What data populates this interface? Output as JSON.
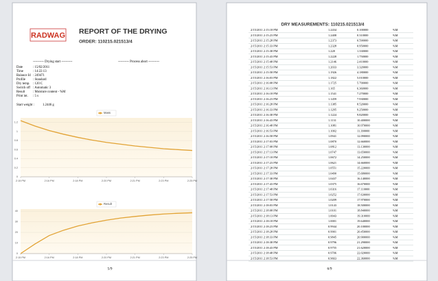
{
  "header": {
    "logo": "RADWAG",
    "title": "REPORT OF THE DRYING",
    "order": "ORDER: 110215.021513/4"
  },
  "info": {
    "start_label": "---------- Drying start ----------",
    "abort_label": "---------- Process abort ----------",
    "rows": [
      {
        "label": "Date",
        "value": ": 15/02/2011"
      },
      {
        "label": "Time",
        "value": ": 14:22:13"
      },
      {
        "label": "Balance Id",
        "value": ": 249471"
      },
      {
        "label": "Profile",
        "value": ": Standard"
      },
      {
        "label": "Dry temp.",
        "value": ": 120 C"
      },
      {
        "label": "Switch off",
        "value": ": Automatic 3"
      },
      {
        "label": "Result",
        "value": ": Moisture content - %M"
      },
      {
        "label": "Print int.",
        "value": ": 5 s"
      }
    ]
  },
  "start_weight": {
    "label": "Start weight :",
    "value": "1.2446 g"
  },
  "charts": [
    {
      "type": "line",
      "legend": "Mass",
      "color": "#e2a233",
      "x": [
        0,
        1,
        2,
        3,
        4,
        5,
        6,
        7,
        8,
        9,
        10,
        11,
        12
      ],
      "values": [
        1.24,
        1.12,
        1.02,
        0.94,
        0.87,
        0.81,
        0.76,
        0.72,
        0.68,
        0.65,
        0.62,
        0.6,
        0.58
      ],
      "xlim": [
        0,
        12
      ],
      "ylim": [
        0,
        1.3
      ],
      "yticks": [
        0,
        0.2,
        0.4,
        0.6,
        0.8,
        1,
        1.2
      ],
      "xticks": [
        {
          "value": 0,
          "label": "2:15 PM"
        },
        {
          "value": 2,
          "label": "2:16 PM"
        },
        {
          "value": 4,
          "label": "2:18 PM"
        },
        {
          "value": 6,
          "label": "2:20 PM"
        },
        {
          "value": 8,
          "label": "2:21 PM"
        },
        {
          "value": 10,
          "label": "2:23 PM"
        },
        {
          "value": 12,
          "label": "2:25 PM"
        }
      ],
      "grid": true
    },
    {
      "type": "line",
      "legend": "Result",
      "color": "#e2a233",
      "x": [
        0,
        1,
        2,
        3,
        4,
        5,
        6,
        7,
        8,
        9,
        10,
        11,
        12
      ],
      "values": [
        0,
        9,
        17,
        22,
        26,
        29,
        31.5,
        33.5,
        35,
        36.3,
        37.3,
        38,
        38.5
      ],
      "xlim": [
        0,
        12
      ],
      "ylim": [
        0,
        42
      ],
      "yticks": [
        0,
        10,
        20,
        30,
        40
      ],
      "xticks": [
        {
          "value": 0,
          "label": "2:15 PM"
        },
        {
          "value": 2,
          "label": "2:16 PM"
        },
        {
          "value": 4,
          "label": "2:18 PM"
        },
        {
          "value": 6,
          "label": "2:20 PM"
        },
        {
          "value": 8,
          "label": "2:21 PM"
        },
        {
          "value": 10,
          "label": "2:23 PM"
        },
        {
          "value": 12,
          "label": "2:25 PM"
        }
      ],
      "grid": true
    }
  ],
  "table": {
    "title": "DRY MEASUREMENTS: 110215.021513/4",
    "rows": [
      [
        "2/15/2011 2:15:18 PM",
        "1.2434",
        "0.100000",
        "%M"
      ],
      [
        "2/15/2011 2:15:23 PM",
        "1.2408",
        "0.310000",
        "%M"
      ],
      [
        "2/15/2011 2:15:28 PM",
        "1.2373",
        "0.590000",
        "%M"
      ],
      [
        "2/15/2011 2:15:33 PM",
        "1.2328",
        "0.950000",
        "%M"
      ],
      [
        "2/15/2011 2:15:38 PM",
        "1.228",
        "1.330000",
        "%M"
      ],
      [
        "2/15/2011 2:15:43 PM",
        "1.2228",
        "1.750000",
        "%M"
      ],
      [
        "2/15/2011 2:15:48 PM",
        "1.2146",
        "2.410000",
        "%M"
      ],
      [
        "2/15/2011 2:15:53 PM",
        "1.2033",
        "3.320000",
        "%M"
      ],
      [
        "2/15/2011 2:15:58 PM",
        "1.1926",
        "4.180000",
        "%M"
      ],
      [
        "2/15/2011 2:16:03 PM",
        "1.1822",
        "5.010000",
        "%M"
      ],
      [
        "2/15/2011 2:16:08 PM",
        "1.1725",
        "5.790000",
        "%M"
      ],
      [
        "2/15/2011 2:16:13 PM",
        "1.165",
        "6.360000",
        "%M"
      ],
      [
        "2/15/2011 2:16:18 PM",
        "1.1541",
        "7.270000",
        "%M"
      ],
      [
        "2/15/2011 2:16:23 PM",
        "1.1459",
        "7.930000",
        "%M"
      ],
      [
        "2/15/2011 2:16:28 PM",
        "1.1385",
        "8.520000",
        "%M"
      ],
      [
        "2/15/2011 2:16:33 PM",
        "1.1295",
        "9.250000",
        "%M"
      ],
      [
        "2/15/2011 2:16:38 PM",
        "1.1224",
        "9.820000",
        "%M"
      ],
      [
        "2/15/2011 2:16:43 PM",
        "1.1131",
        "10.400000",
        "%M"
      ],
      [
        "2/15/2011 2:16:48 PM",
        "1.1081",
        "10.970000",
        "%M"
      ],
      [
        "2/15/2011 2:16:53 PM",
        "1.1002",
        "11.390000",
        "%M"
      ],
      [
        "2/15/2011 2:16:58 PM",
        "1.0941",
        "12.090000",
        "%M"
      ],
      [
        "2/15/2011 2:17:03 PM",
        "1.0870",
        "12.660000",
        "%M"
      ],
      [
        "2/15/2011 2:17:08 PM",
        "1.0812",
        "13.130000",
        "%M"
      ],
      [
        "2/15/2011 2:17:13 PM",
        "1.0747",
        "13.650000",
        "%M"
      ],
      [
        "2/15/2011 2:17:18 PM",
        "1.0672",
        "14.250000",
        "%M"
      ],
      [
        "2/15/2011 2:17:23 PM",
        "1.0621",
        "14.660000",
        "%M"
      ],
      [
        "2/15/2011 2:17:28 PM",
        "1.0551",
        "15.220000",
        "%M"
      ],
      [
        "2/15/2011 2:17:33 PM",
        "1.0490",
        "15.680000",
        "%M"
      ],
      [
        "2/15/2011 2:17:38 PM",
        "1.0437",
        "16.140000",
        "%M"
      ],
      [
        "2/15/2011 2:17:43 PM",
        "1.0375",
        "16.670000",
        "%M"
      ],
      [
        "2/15/2011 2:17:48 PM",
        "1.0316",
        "17.110000",
        "%M"
      ],
      [
        "2/15/2011 2:17:53 PM",
        "1.0252",
        "17.630000",
        "%M"
      ],
      [
        "2/15/2011 2:17:58 PM",
        "1.0209",
        "17.970000",
        "%M"
      ],
      [
        "2/15/2011 2:18:03 PM",
        "1.0143",
        "18.500000",
        "%M"
      ],
      [
        "2/15/2011 2:18:08 PM",
        "1.0101",
        "18.840000",
        "%M"
      ],
      [
        "2/15/2011 2:18:13 PM",
        "1.0043",
        "19.310000",
        "%M"
      ],
      [
        "2/15/2011 2:18:18 PM",
        "1.0001",
        "19.640000",
        "%M"
      ],
      [
        "2/15/2011 2:18:23 PM",
        "0.9944",
        "20.100000",
        "%M"
      ],
      [
        "2/15/2011 2:18:28 PM",
        "0.9901",
        "20.450000",
        "%M"
      ],
      [
        "2/15/2011 2:18:33 PM",
        "0.9845",
        "20.900000",
        "%M"
      ],
      [
        "2/15/2011 2:18:38 PM",
        "0.9796",
        "21.290000",
        "%M"
      ],
      [
        "2/15/2011 2:18:43 PM",
        "0.9755",
        "21.620000",
        "%M"
      ],
      [
        "2/15/2011 2:18:48 PM",
        "0.9706",
        "22.020000",
        "%M"
      ],
      [
        "2/15/2011 2:18:53 PM",
        "0.9663",
        "22.360000",
        "%M"
      ]
    ]
  },
  "page_numbers": [
    "5/9",
    "6/9"
  ]
}
